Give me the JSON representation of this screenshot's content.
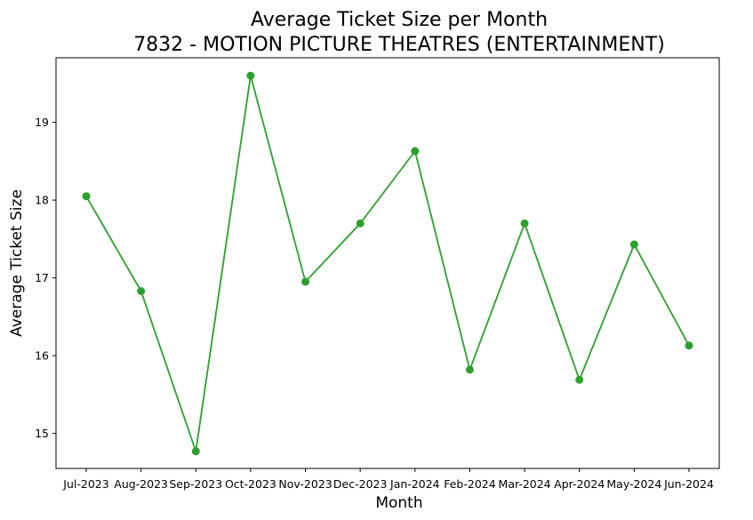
{
  "chart_data": {
    "type": "line",
    "title": "Average Ticket Size per Month",
    "subtitle": "7832 - MOTION PICTURE THEATRES (ENTERTAINMENT)",
    "xlabel": "Month",
    "ylabel": "Average Ticket Size",
    "categories": [
      "Jul-2023",
      "Aug-2023",
      "Sep-2023",
      "Oct-2023",
      "Nov-2023",
      "Dec-2023",
      "Jan-2024",
      "Feb-2024",
      "Mar-2024",
      "Apr-2024",
      "May-2024",
      "Jun-2024"
    ],
    "series": [
      {
        "name": "Average Ticket Size",
        "color": "#2ca02c",
        "values": [
          18.05,
          16.83,
          14.77,
          19.6,
          16.95,
          17.7,
          18.63,
          15.82,
          17.7,
          15.69,
          17.43,
          16.13
        ]
      }
    ],
    "ylim": [
      14.55,
      19.83
    ],
    "yticks": [
      15,
      16,
      17,
      18,
      19
    ],
    "grid": false,
    "legend": "none"
  }
}
